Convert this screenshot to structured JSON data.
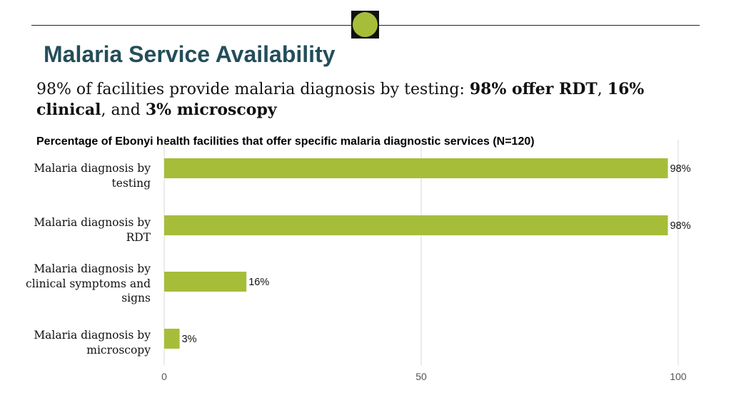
{
  "header": {
    "title": "Malaria Service Availability",
    "subtitle_parts": [
      {
        "text": "98% of facilities provide malaria diagnosis by testing: ",
        "bold": false
      },
      {
        "text": "98% offer RDT",
        "bold": true
      },
      {
        "text": ", ",
        "bold": false
      },
      {
        "text": "16% clinical",
        "bold": true
      },
      {
        "text": ", and ",
        "bold": false
      },
      {
        "text": "3% microscopy",
        "bold": true
      }
    ]
  },
  "colors": {
    "bar": "#a6bd3a",
    "title": "#234e5a",
    "logo": "#a6bd3a"
  },
  "chart_data": {
    "type": "bar",
    "orientation": "horizontal",
    "title": "Percentage of Ebonyi health facilities that offer specific malaria diagnostic services (N=120)",
    "categories": [
      "Malaria diagnosis by testing",
      "Malaria diagnosis by RDT",
      "Malaria diagnosis by clinical symptoms and signs",
      "Malaria diagnosis by microscopy"
    ],
    "values": [
      98,
      98,
      16,
      3
    ],
    "data_labels": [
      "98%",
      "98%",
      "16%",
      "3%"
    ],
    "xlim": [
      0,
      100
    ],
    "x_ticks": [
      "0",
      "50",
      "100"
    ],
    "grid": true,
    "legend": "none"
  }
}
